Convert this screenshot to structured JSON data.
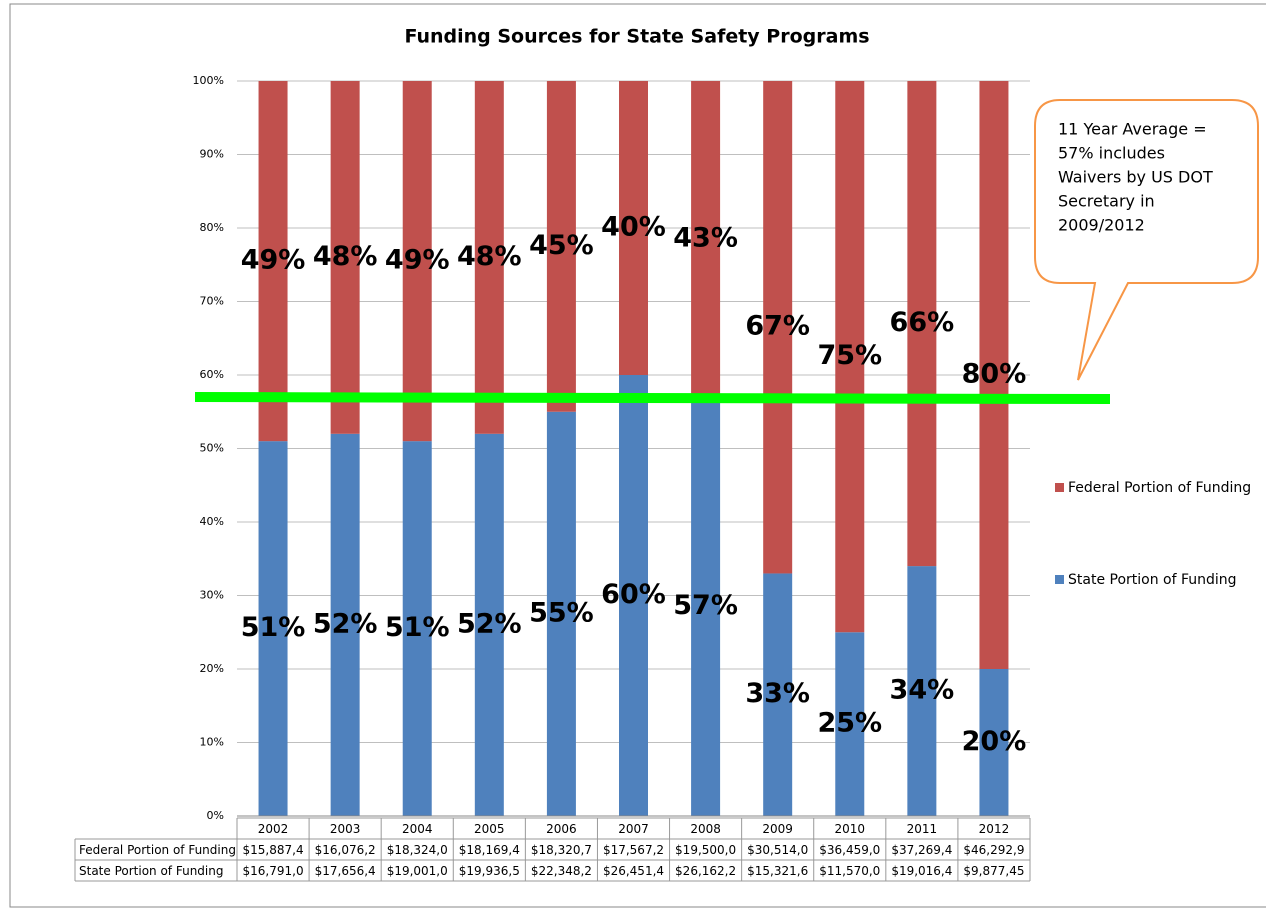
{
  "chart_data": {
    "type": "stacked_bar_100",
    "title": "Funding Sources for State Safety Programs",
    "categories": [
      "2002",
      "2003",
      "2004",
      "2005",
      "2006",
      "2007",
      "2008",
      "2009",
      "2010",
      "2011",
      "2012"
    ],
    "series": [
      {
        "name": "State Portion of Funding",
        "color": "#4f81bd",
        "values": [
          51,
          52,
          51,
          52,
          55,
          60,
          57,
          33,
          25,
          34,
          20
        ],
        "value_labels": [
          "51%",
          "52%",
          "51%",
          "52%",
          "55%",
          "60%",
          "57%",
          "33%",
          "25%",
          "34%",
          "20%"
        ],
        "table_values": [
          "$16,791,0",
          "$17,656,4",
          "$19,001,0",
          "$19,936,5",
          "$22,348,2",
          "$26,451,4",
          "$26,162,2",
          "$15,321,6",
          "$11,570,0",
          "$19,016,4",
          "$9,877,45"
        ]
      },
      {
        "name": "Federal Portion of Funding",
        "color": "#c0504d",
        "values": [
          49,
          48,
          49,
          48,
          45,
          40,
          43,
          67,
          75,
          66,
          80
        ],
        "value_labels": [
          "49%",
          "48%",
          "49%",
          "48%",
          "45%",
          "40%",
          "43%",
          "67%",
          "75%",
          "66%",
          "80%"
        ],
        "table_values": [
          "$15,887,4",
          "$16,076,2",
          "$18,324,0",
          "$18,169,4",
          "$18,320,7",
          "$17,567,2",
          "$19,500,0",
          "$30,514,0",
          "$36,459,0",
          "$37,269,4",
          "$46,292,9"
        ]
      }
    ],
    "ylim": [
      0,
      100
    ],
    "yticks": [
      {
        "value": 0,
        "label": "0%"
      },
      {
        "value": 10,
        "label": "10%"
      },
      {
        "value": 20,
        "label": "20%"
      },
      {
        "value": 30,
        "label": "30%"
      },
      {
        "value": 40,
        "label": "40%"
      },
      {
        "value": 50,
        "label": "50%"
      },
      {
        "value": 60,
        "label": "60%"
      },
      {
        "value": 70,
        "label": "70%"
      },
      {
        "value": 80,
        "label": "80%"
      },
      {
        "value": 90,
        "label": "90%"
      },
      {
        "value": 100,
        "label": "100%"
      }
    ],
    "grid": true,
    "reference_line": {
      "value": 57,
      "color": "#00ff00"
    },
    "annotation_lines": [
      "11 Year Average  =",
      "57% includes",
      "Waivers by US DOT",
      "Secretary in",
      "2009/2012"
    ]
  }
}
